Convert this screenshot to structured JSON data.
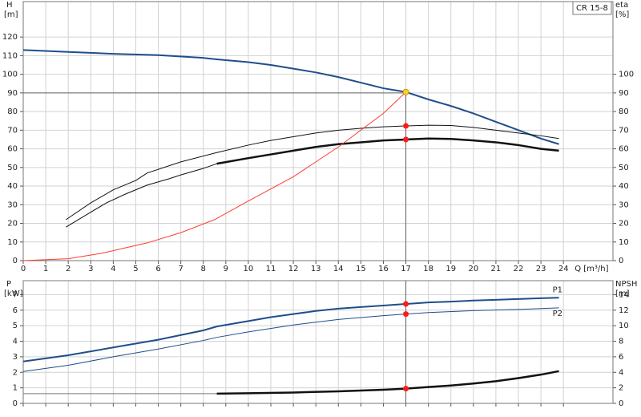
{
  "chart_data": [
    {
      "type": "line",
      "ylabel": "H",
      "yunit": "[m]",
      "y2label": "eta",
      "y2unit": "[%]",
      "xlabel": "Q [m³/h]",
      "tag": "CR 15-8",
      "xlim": [
        0,
        26.2
      ],
      "ylim": [
        0,
        139
      ],
      "y2lim": [
        0,
        139
      ],
      "xticks": [
        0,
        1,
        2,
        3,
        4,
        5,
        6,
        7,
        8,
        9,
        10,
        11,
        12,
        13,
        14,
        15,
        16,
        17,
        18,
        19,
        20,
        21,
        22,
        23,
        24
      ],
      "yticks": [
        0,
        10,
        20,
        30,
        40,
        50,
        60,
        70,
        80,
        90,
        100,
        110,
        120
      ],
      "y2ticks": [
        0,
        10,
        20,
        30,
        40,
        50,
        60,
        70,
        80,
        90,
        100
      ],
      "show_xtick_labels": true,
      "grid": true,
      "guide": {
        "x": 17,
        "y": 90
      },
      "series": [
        {
          "color": "#1f4e8c",
          "width": 2,
          "x": [
            0,
            2,
            4,
            6,
            8,
            8.6,
            10,
            11,
            12,
            13,
            14,
            15,
            16,
            17,
            18,
            19,
            20,
            21,
            22,
            23,
            23.8
          ],
          "values": [
            113,
            112,
            111,
            110.3,
            108.8,
            108,
            106.5,
            105,
            103,
            101,
            98.5,
            95.5,
            92.5,
            90.5,
            86.5,
            83,
            79,
            74.5,
            70,
            65.5,
            62.5
          ]
        },
        {
          "color": "#111111",
          "width": 1,
          "axis": "y2",
          "x": [
            1.9,
            3,
            4,
            5,
            5.5,
            7,
            8.6,
            10,
            11,
            12,
            13,
            14,
            15,
            16,
            17,
            18,
            19,
            20,
            21,
            22,
            23,
            23.8
          ],
          "values": [
            22,
            31,
            38,
            43,
            47,
            53,
            58,
            62,
            64.5,
            66.5,
            68.5,
            70,
            71,
            71.8,
            72.3,
            72.7,
            72.5,
            71.5,
            70,
            68.5,
            67,
            65.5
          ]
        },
        {
          "color": "#111111",
          "width": 1,
          "axis": "y2",
          "x": [
            1.9,
            3,
            3.7,
            4.5,
            5.5,
            6.5,
            7,
            8,
            8.6
          ],
          "values": [
            18,
            26,
            31,
            35.5,
            40.5,
            44,
            46,
            49.5,
            52
          ]
        },
        {
          "color": "#111111",
          "width": 2.5,
          "axis": "y2",
          "x": [
            8.6,
            10,
            11,
            12,
            13,
            14,
            15,
            16,
            17,
            18,
            19,
            20,
            21,
            22,
            23,
            23.8
          ],
          "values": [
            52,
            55,
            57,
            59,
            61,
            62.5,
            63.5,
            64.5,
            65,
            65.5,
            65.3,
            64.5,
            63.5,
            62,
            60,
            59
          ]
        },
        {
          "color": "#ff3b30",
          "width": 1,
          "x": [
            0,
            2,
            3.5,
            5.5,
            7,
            8.5,
            10,
            12,
            14,
            16,
            17
          ],
          "values": [
            0,
            1,
            4,
            9.5,
            15,
            22,
            32,
            45,
            61,
            79,
            90.5
          ]
        }
      ],
      "markers": [
        {
          "x": 17,
          "y": 90.5,
          "color": "#ffd21f"
        },
        {
          "x": 17,
          "y": 72.3,
          "color": "#ff1a1a",
          "axis": "y2"
        },
        {
          "x": 17,
          "y": 65,
          "color": "#ff1a1a",
          "axis": "y2"
        }
      ]
    },
    {
      "type": "line",
      "ylabel": "P",
      "yunit": "[kW]",
      "y2label": "NPSH",
      "y2unit": "[m]",
      "xlim": [
        0,
        26.2
      ],
      "ylim": [
        0,
        7.9
      ],
      "y2lim": [
        0,
        15.8
      ],
      "xticks": [
        0,
        1,
        2,
        3,
        4,
        5,
        6,
        7,
        8,
        9,
        10,
        11,
        12,
        13,
        14,
        15,
        16,
        17,
        18,
        19,
        20,
        21,
        22,
        23,
        24
      ],
      "yticks": [
        0,
        1,
        2,
        3,
        4,
        5,
        6,
        7
      ],
      "y2ticks": [
        0,
        2,
        4,
        6,
        8,
        10,
        12,
        14
      ],
      "show_xtick_labels": false,
      "grid": true,
      "guide": {
        "x": 17
      },
      "series": [
        {
          "name": "P1",
          "color": "#1f4e8c",
          "width": 2,
          "x": [
            0,
            2,
            4,
            6,
            8,
            8.6,
            10,
            11,
            12,
            13,
            14,
            15,
            16,
            17,
            18,
            19,
            20,
            21,
            22,
            23,
            23.8
          ],
          "values": [
            2.7,
            3.1,
            3.6,
            4.1,
            4.7,
            4.95,
            5.3,
            5.55,
            5.75,
            5.95,
            6.1,
            6.2,
            6.3,
            6.4,
            6.5,
            6.55,
            6.62,
            6.67,
            6.72,
            6.77,
            6.8
          ]
        },
        {
          "name": "P2",
          "color": "#1f4e8c",
          "width": 1,
          "x": [
            0,
            2,
            4,
            6,
            8,
            8.6,
            10,
            12,
            14,
            16,
            17,
            18,
            20,
            22,
            23.8
          ],
          "values": [
            2.05,
            2.45,
            3.0,
            3.5,
            4.05,
            4.25,
            4.6,
            5.05,
            5.4,
            5.65,
            5.75,
            5.85,
            5.97,
            6.05,
            6.15
          ]
        },
        {
          "color": "#777777",
          "width": 1,
          "axis": "y2",
          "x": [
            0,
            8.6
          ],
          "values": [
            1.25,
            1.25
          ]
        },
        {
          "color": "#111111",
          "width": 2.5,
          "axis": "y2",
          "x": [
            8.6,
            10,
            12,
            14,
            16,
            17,
            18,
            19,
            20,
            21,
            22,
            23,
            23.8
          ],
          "values": [
            1.25,
            1.3,
            1.4,
            1.55,
            1.75,
            1.9,
            2.1,
            2.3,
            2.55,
            2.85,
            3.25,
            3.7,
            4.15
          ]
        }
      ],
      "markers": [
        {
          "x": 17,
          "y": 6.4,
          "color": "#ff1a1a"
        },
        {
          "x": 17,
          "y": 5.75,
          "color": "#ff1a1a"
        },
        {
          "x": 17,
          "y": 1.9,
          "color": "#ff1a1a",
          "axis": "y2"
        }
      ]
    }
  ]
}
